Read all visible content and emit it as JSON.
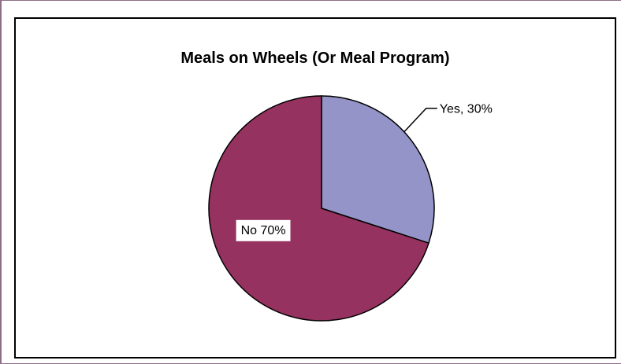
{
  "chart_data": {
    "type": "pie",
    "title": "Meals on Wheels (Or Meal Program)",
    "slices": [
      {
        "label": "Yes",
        "value": 30,
        "data_label": "Yes, 30%",
        "color": "#9494c8"
      },
      {
        "label": "No",
        "value": 70,
        "data_label": "No 70%",
        "color": "#96325f"
      }
    ],
    "legend": "none"
  }
}
